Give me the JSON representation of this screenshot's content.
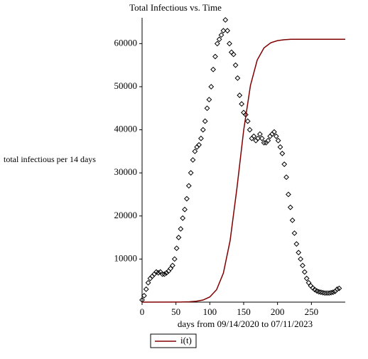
{
  "chart_data": {
    "type": "scatter",
    "title": "Total Infectious vs. Time",
    "x_label": "days from 09/14/2020 to 07/11/2023",
    "y_label": "total infectious per 14 days",
    "xlim": [
      0,
      300
    ],
    "ylim": [
      0,
      66000
    ],
    "xticks": [
      0,
      50,
      100,
      150,
      200,
      250
    ],
    "yticks": [
      10000,
      20000,
      30000,
      40000,
      50000,
      60000
    ],
    "series": [
      {
        "type": "scatter",
        "color": "#000000",
        "x": [
          0,
          3,
          6,
          9,
          12,
          15,
          18,
          21,
          24,
          27,
          30,
          33,
          36,
          39,
          42,
          45,
          48,
          51,
          54,
          57,
          60,
          63,
          66,
          69,
          72,
          75,
          78,
          81,
          84,
          87,
          90,
          93,
          96,
          99,
          102,
          105,
          108,
          111,
          114,
          117,
          120,
          123,
          126,
          129,
          132,
          135,
          138,
          141,
          144,
          147,
          150,
          153,
          156,
          159,
          162,
          165,
          168,
          171,
          174,
          177,
          180,
          183,
          186,
          189,
          192,
          195,
          198,
          201,
          204,
          207,
          210,
          213,
          216,
          219,
          222,
          225,
          228,
          231,
          234,
          237,
          240,
          243,
          246,
          249,
          252,
          255,
          258,
          261,
          264,
          267,
          270,
          273,
          276,
          279,
          282,
          285,
          288,
          291
        ],
        "values": [
          500,
          1500,
          3000,
          4500,
          5500,
          6000,
          6500,
          7000,
          6800,
          7000,
          6500,
          6500,
          6800,
          7200,
          7800,
          8500,
          10000,
          12500,
          15000,
          17000,
          19500,
          21500,
          24000,
          27000,
          30000,
          33000,
          35000,
          36000,
          36500,
          38000,
          40000,
          42000,
          45000,
          47000,
          50000,
          54000,
          57000,
          60000,
          61000,
          62000,
          63000,
          65500,
          63000,
          60000,
          58000,
          57500,
          55000,
          52000,
          48000,
          46000,
          44000,
          43500,
          42000,
          40000,
          38000,
          38500,
          37500,
          38000,
          39000,
          38000,
          37000,
          37000,
          37500,
          38500,
          39000,
          39500,
          38500,
          37500,
          36000,
          34500,
          32000,
          29000,
          25000,
          22000,
          19000,
          16000,
          13500,
          11500,
          10000,
          8500,
          7000,
          5500,
          4500,
          3800,
          3300,
          2900,
          2600,
          2400,
          2300,
          2200,
          2100,
          2100,
          2100,
          2200,
          2300,
          2500,
          3000,
          3200
        ]
      },
      {
        "type": "line",
        "name": "i(t)",
        "color": "#800000",
        "x": [
          0,
          50,
          60,
          70,
          80,
          90,
          100,
          110,
          120,
          130,
          140,
          150,
          160,
          170,
          180,
          190,
          200,
          210,
          220,
          240,
          260,
          280,
          300
        ],
        "values": [
          0,
          13,
          32,
          80,
          198,
          488,
          1198,
          2890,
          6710,
          14300,
          26400,
          39900,
          50300,
          56200,
          59000,
          60200,
          60700,
          60900,
          61000,
          61000,
          61000,
          61000,
          61000
        ]
      }
    ]
  }
}
